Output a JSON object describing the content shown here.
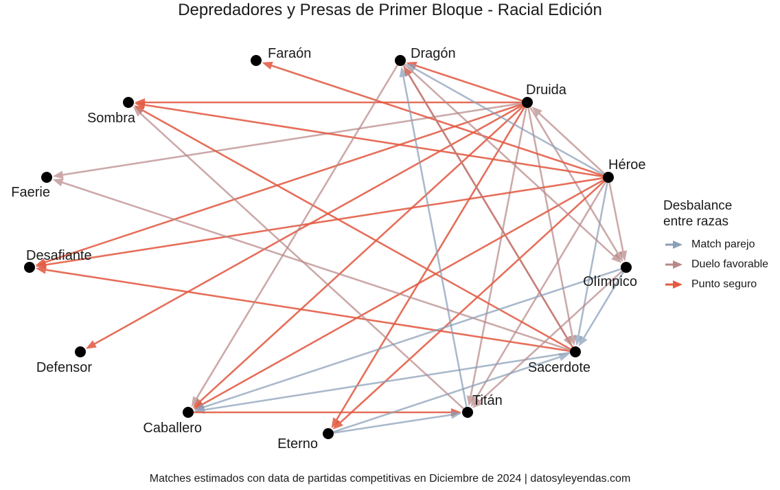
{
  "title": "Depredadores y Presas de Primer Bloque - Racial Edición",
  "caption": "Matches estimados con data de partidas competitivas en Diciembre de 2024 | datosyleyendas.com",
  "legend": {
    "title_line1": "Desbalance",
    "title_line2": "entre razas",
    "items": [
      {
        "key": "parejo",
        "label": "Match parejo",
        "color": "#8a9fb8"
      },
      {
        "key": "favorable",
        "label": "Duelo favorable",
        "color": "#b98888"
      },
      {
        "key": "seguro",
        "label": "Punto seguro",
        "color": "#e35b43"
      }
    ]
  },
  "nodes": [
    {
      "id": "faraon",
      "label": "Faraón"
    },
    {
      "id": "dragon",
      "label": "Dragón"
    },
    {
      "id": "druida",
      "label": "Druida"
    },
    {
      "id": "sombra",
      "label": "Sombra"
    },
    {
      "id": "heroe",
      "label": "Héroe"
    },
    {
      "id": "faerie",
      "label": "Faerie"
    },
    {
      "id": "desafiante",
      "label": "Desafiante"
    },
    {
      "id": "olimpico",
      "label": "Olímpico"
    },
    {
      "id": "defensor",
      "label": "Defensor"
    },
    {
      "id": "sacerdote",
      "label": "Sacerdote"
    },
    {
      "id": "titan",
      "label": "Titán"
    },
    {
      "id": "caballero",
      "label": "Caballero"
    },
    {
      "id": "eterno",
      "label": "Eterno"
    }
  ],
  "edges": [
    {
      "from": "druida",
      "to": "sombra",
      "type": "seguro"
    },
    {
      "from": "druida",
      "to": "dragon",
      "type": "seguro"
    },
    {
      "from": "druida",
      "to": "desafiante",
      "type": "seguro"
    },
    {
      "from": "druida",
      "to": "defensor",
      "type": "seguro"
    },
    {
      "from": "druida",
      "to": "caballero",
      "type": "seguro"
    },
    {
      "from": "druida",
      "to": "eterno",
      "type": "seguro"
    },
    {
      "from": "druida",
      "to": "faerie",
      "type": "favorable"
    },
    {
      "from": "druida",
      "to": "titan",
      "type": "favorable"
    },
    {
      "from": "druida",
      "to": "sacerdote",
      "type": "favorable"
    },
    {
      "from": "druida",
      "to": "olimpico",
      "type": "favorable"
    },
    {
      "from": "heroe",
      "to": "druida",
      "type": "favorable"
    },
    {
      "from": "heroe",
      "to": "faraon",
      "type": "seguro"
    },
    {
      "from": "heroe",
      "to": "sombra",
      "type": "seguro"
    },
    {
      "from": "heroe",
      "to": "desafiante",
      "type": "seguro"
    },
    {
      "from": "heroe",
      "to": "caballero",
      "type": "seguro"
    },
    {
      "from": "heroe",
      "to": "eterno",
      "type": "seguro"
    },
    {
      "from": "heroe",
      "to": "dragon",
      "type": "parejo"
    },
    {
      "from": "heroe",
      "to": "sacerdote",
      "type": "parejo"
    },
    {
      "from": "heroe",
      "to": "olimpico",
      "type": "favorable"
    },
    {
      "from": "heroe",
      "to": "titan",
      "type": "favorable"
    },
    {
      "from": "sacerdote",
      "to": "sombra",
      "type": "seguro"
    },
    {
      "from": "sacerdote",
      "to": "dragon",
      "type": "seguro"
    },
    {
      "from": "sacerdote",
      "to": "desafiante",
      "type": "seguro"
    },
    {
      "from": "sacerdote",
      "to": "faerie",
      "type": "favorable"
    },
    {
      "from": "sacerdote",
      "to": "caballero",
      "type": "parejo"
    },
    {
      "from": "dragon",
      "to": "olimpico",
      "type": "favorable"
    },
    {
      "from": "dragon",
      "to": "sacerdote",
      "type": "favorable"
    },
    {
      "from": "dragon",
      "to": "caballero",
      "type": "favorable"
    },
    {
      "from": "titan",
      "to": "dragon",
      "type": "parejo"
    },
    {
      "from": "titan",
      "to": "sombra",
      "type": "favorable"
    },
    {
      "from": "olimpico",
      "to": "sacerdote",
      "type": "parejo"
    },
    {
      "from": "olimpico",
      "to": "caballero",
      "type": "parejo"
    },
    {
      "from": "olimpico",
      "to": "titan",
      "type": "favorable"
    },
    {
      "from": "caballero",
      "to": "titan",
      "type": "seguro"
    },
    {
      "from": "eterno",
      "to": "sacerdote",
      "type": "parejo"
    },
    {
      "from": "eterno",
      "to": "titan",
      "type": "parejo"
    }
  ]
}
